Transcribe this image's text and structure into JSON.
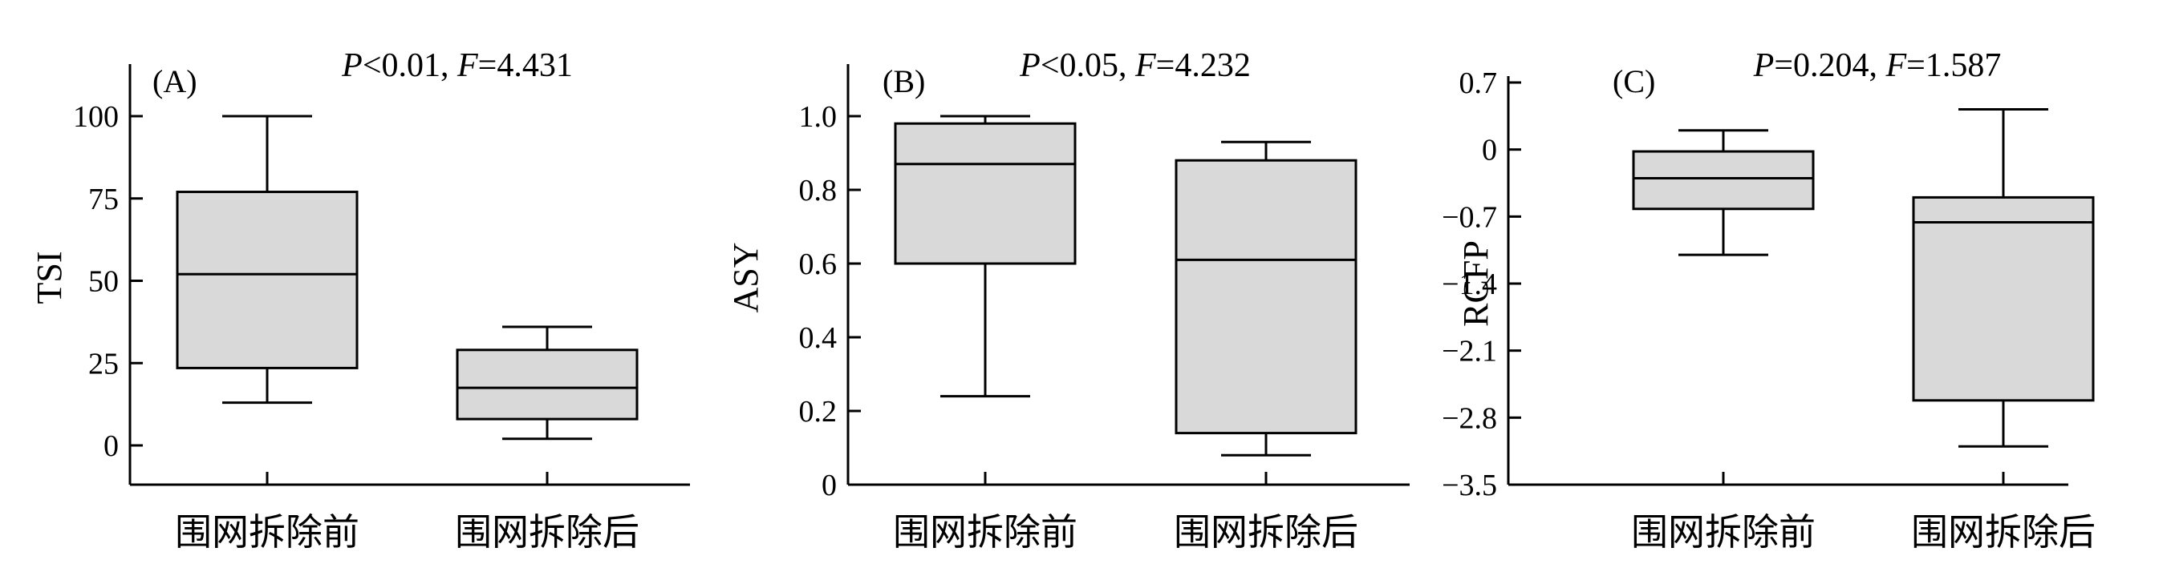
{
  "chart_data": [
    {
      "type": "box",
      "panel_label": "(A)",
      "stats": {
        "p_prefix": "P",
        "p_text": "<0.01, ",
        "f_prefix": "F",
        "f_text": "=4.431"
      },
      "ylabel": "TSI",
      "xlabel": "",
      "ylim": [
        -12,
        113
      ],
      "yticks": [
        0,
        25,
        50,
        75,
        100
      ],
      "ytick_labels": [
        "0",
        "25",
        "50",
        "75",
        "100"
      ],
      "categories": [
        "围网拆除前",
        "围网拆除后"
      ],
      "boxes": [
        {
          "min": 13,
          "q1": 23.5,
          "median": 52,
          "q3": 77,
          "max": 100
        },
        {
          "min": 2,
          "q1": 8,
          "median": 17.5,
          "q3": 29,
          "max": 36
        }
      ],
      "grid": false,
      "box_color": "#d9d9d9"
    },
    {
      "type": "box",
      "panel_label": "(B)",
      "stats": {
        "p_prefix": "P",
        "p_text": "<0.05, ",
        "f_prefix": "F",
        "f_text": "=4.232"
      },
      "ylabel": "ASY",
      "xlabel": "",
      "ylim": [
        0,
        1.1
      ],
      "yticks": [
        0,
        0.2,
        0.4,
        0.6,
        0.8,
        1.0
      ],
      "ytick_labels": [
        "0",
        "0.2",
        "0.4",
        "0.6",
        "0.8",
        "1.0"
      ],
      "categories": [
        "围网拆除前",
        "围网拆除后"
      ],
      "boxes": [
        {
          "min": 0.24,
          "q1": 0.6,
          "median": 0.87,
          "q3": 0.98,
          "max": 1.0
        },
        {
          "min": 0.08,
          "q1": 0.14,
          "median": 0.61,
          "q3": 0.88,
          "max": 0.93
        }
      ],
      "grid": false,
      "box_color": "#d9d9d9"
    },
    {
      "type": "box",
      "panel_label": "(C)",
      "stats": {
        "p_prefix": "P",
        "p_text": "=0.204, ",
        "f_prefix": "F",
        "f_text": "=1.587"
      },
      "ylabel": "RCFP",
      "xlabel": "",
      "ylim": [
        -3.5,
        0.7
      ],
      "yticks": [
        0.7,
        0,
        -0.7,
        -1.4,
        -2.1,
        -2.8,
        -3.5
      ],
      "ytick_labels": [
        "0.7",
        "0",
        "−0.7",
        "−1.4",
        "−2.1",
        "−2.8",
        "−3.5"
      ],
      "categories": [
        "围网拆除前",
        "围网拆除后"
      ],
      "boxes": [
        {
          "min": -1.1,
          "q1": -0.62,
          "median": -0.3,
          "q3": -0.02,
          "max": 0.2
        },
        {
          "min": -3.1,
          "q1": -2.62,
          "median": -0.76,
          "q3": -0.5,
          "max": 0.42
        }
      ],
      "grid": false,
      "box_color": "#d9d9d9"
    }
  ]
}
